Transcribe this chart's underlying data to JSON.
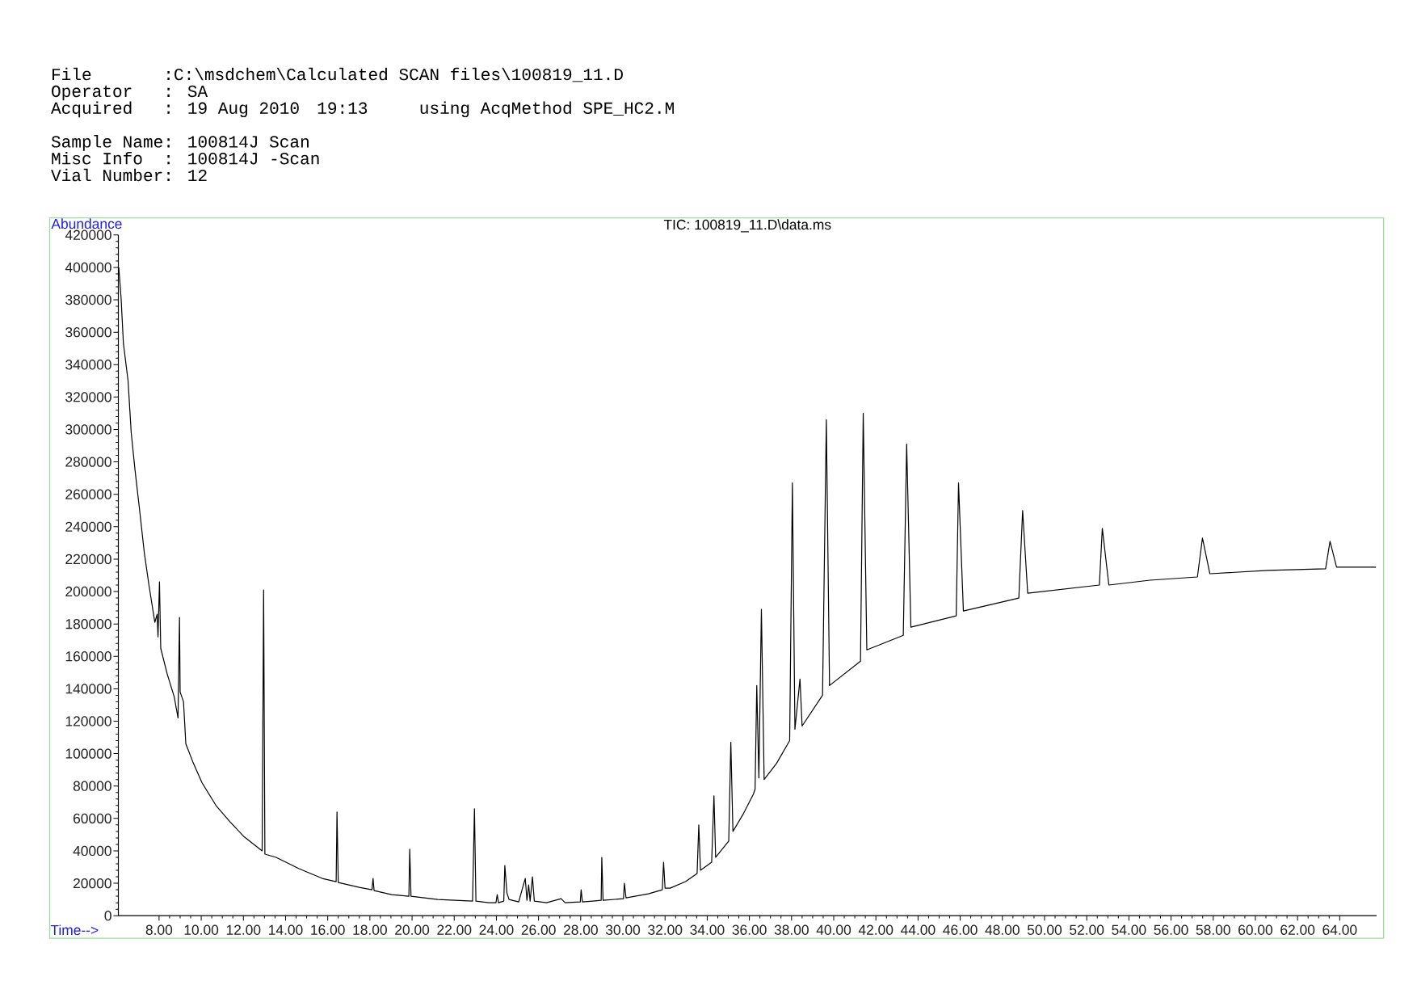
{
  "chart_data": {
    "type": "line",
    "title": "TIC: 100819_11.D\\data.ms",
    "xlabel": "Time-->",
    "ylabel": "Abundance",
    "annotations": [
      "File",
      ":C:\\msdchem\\Calculated SCAN files\\100819_11.D",
      "Operator",
      ": SA",
      "Acquired",
      ": 19 Aug 2010",
      "19:13",
      "using AcqMethod SPE_HC2.M",
      "Sample Name: 100814J Scan",
      "Misc Info",
      ": 100814J -Scan",
      "Vial Number: 12"
    ],
    "xlim": [
      6.07,
      65.75
    ],
    "ylim": [
      0,
      420000
    ],
    "xticks": [
      {
        "value": 8,
        "label": "8.00"
      },
      {
        "value": 10,
        "label": "10.00"
      },
      {
        "value": 12,
        "label": "12.00"
      },
      {
        "value": 14,
        "label": "14.00"
      },
      {
        "value": 16,
        "label": "16.00"
      },
      {
        "value": 18,
        "label": "18.00"
      },
      {
        "value": 20,
        "label": "20.00"
      },
      {
        "value": 22,
        "label": "22.00"
      },
      {
        "value": 24,
        "label": "24.00"
      },
      {
        "value": 26,
        "label": "26.00"
      },
      {
        "value": 28,
        "label": "28.00"
      },
      {
        "value": 30,
        "label": "30.00"
      },
      {
        "value": 32,
        "label": "32.00"
      },
      {
        "value": 34,
        "label": "34.00"
      },
      {
        "value": 36,
        "label": "36.00"
      },
      {
        "value": 38,
        "label": "38.00"
      },
      {
        "value": 40,
        "label": "40.00"
      },
      {
        "value": 42,
        "label": "42.00"
      },
      {
        "value": 44,
        "label": "44.00"
      },
      {
        "value": 46,
        "label": "46.00"
      },
      {
        "value": 48,
        "label": "48.00"
      },
      {
        "value": 50,
        "label": "50.00"
      },
      {
        "value": 52,
        "label": "52.00"
      },
      {
        "value": 54,
        "label": "54.00"
      },
      {
        "value": 56,
        "label": "56.00"
      },
      {
        "value": 58,
        "label": "58.00"
      },
      {
        "value": 60,
        "label": "60.00"
      },
      {
        "value": 62,
        "label": "62.00"
      },
      {
        "value": 64,
        "label": "64.00"
      }
    ],
    "yticks": [
      0,
      20000,
      40000,
      60000,
      80000,
      100000,
      120000,
      140000,
      160000,
      180000,
      200000,
      220000,
      240000,
      260000,
      280000,
      300000,
      320000,
      340000,
      360000,
      380000,
      400000,
      420000
    ],
    "x": [
      6.09,
      6.2,
      6.31,
      6.53,
      6.68,
      6.86,
      7.08,
      7.3,
      7.52,
      7.8,
      7.91,
      7.95,
      8.02,
      8.08,
      8.39,
      8.72,
      8.9,
      8.97,
      9.0,
      9.16,
      9.27,
      9.6,
      10.04,
      10.7,
      11.36,
      12.01,
      12.89,
      12.96,
      13.02,
      13.55,
      14.64,
      15.74,
      16.4,
      16.44,
      16.5,
      17.5,
      18.1,
      18.15,
      18.2,
      19.03,
      19.85,
      19.89,
      19.95,
      21.22,
      22.87,
      22.96,
      23.03,
      23.64,
      23.98,
      24.04,
      24.1,
      24.35,
      24.4,
      24.5,
      24.6,
      25.06,
      25.28,
      25.37,
      25.45,
      25.53,
      25.6,
      25.71,
      25.8,
      26.38,
      27.07,
      27.26,
      27.98,
      28.02,
      28.08,
      28.58,
      28.97,
      29.0,
      29.06,
      30.03,
      30.07,
      30.15,
      31.21,
      31.87,
      31.93,
      32.0,
      32.24,
      32.97,
      33.52,
      33.6,
      33.68,
      34.21,
      34.32,
      34.4,
      35.02,
      35.12,
      35.22,
      35.72,
      36.19,
      36.27,
      36.35,
      36.45,
      36.57,
      36.7,
      37.29,
      37.91,
      38.04,
      38.16,
      38.4,
      38.5,
      39.47,
      39.65,
      39.8,
      41.27,
      41.4,
      41.57,
      43.3,
      43.46,
      43.66,
      45.81,
      45.92,
      46.15,
      48.78,
      48.96,
      49.2,
      52.6,
      52.74,
      53.05,
      55.0,
      57.25,
      57.49,
      57.84,
      60.6,
      63.33,
      63.54,
      63.85,
      65.72
    ],
    "series": [
      {
        "color": "#000000",
        "values": [
          400000,
          381000,
          353000,
          330000,
          298000,
          275000,
          250000,
          224000,
          204000,
          181000,
          186000,
          172000,
          206000,
          165000,
          149000,
          135000,
          122000,
          184000,
          138000,
          132000,
          106000,
          95000,
          82000,
          68000,
          58000,
          49000,
          40000,
          201000,
          38000,
          36000,
          29000,
          23000,
          21000,
          64000,
          20500,
          17500,
          16000,
          23000,
          15500,
          13000,
          12000,
          41000,
          12000,
          10000,
          9000,
          66000,
          9000,
          8000,
          8000,
          13000,
          8000,
          9000,
          31000,
          14000,
          10000,
          8500,
          19000,
          23000,
          9500,
          19000,
          9000,
          24000,
          9000,
          8000,
          10500,
          8000,
          8500,
          16000,
          8500,
          9000,
          9500,
          36000,
          9500,
          10500,
          20000,
          11000,
          13500,
          16000,
          33000,
          17000,
          17000,
          21000,
          26000,
          56000,
          28000,
          33000,
          74000,
          36000,
          46000,
          107000,
          52000,
          63000,
          75000,
          78000,
          142000,
          85000,
          189000,
          84000,
          94000,
          108000,
          267000,
          115000,
          146000,
          117000,
          136000,
          306000,
          142000,
          157000,
          310000,
          164000,
          173000,
          291000,
          178000,
          185000,
          267000,
          188000,
          196000,
          250000,
          199000,
          204000,
          239000,
          204000,
          207000,
          209000,
          233000,
          211000,
          213000,
          214000,
          231000,
          215000,
          215000
        ]
      }
    ]
  }
}
